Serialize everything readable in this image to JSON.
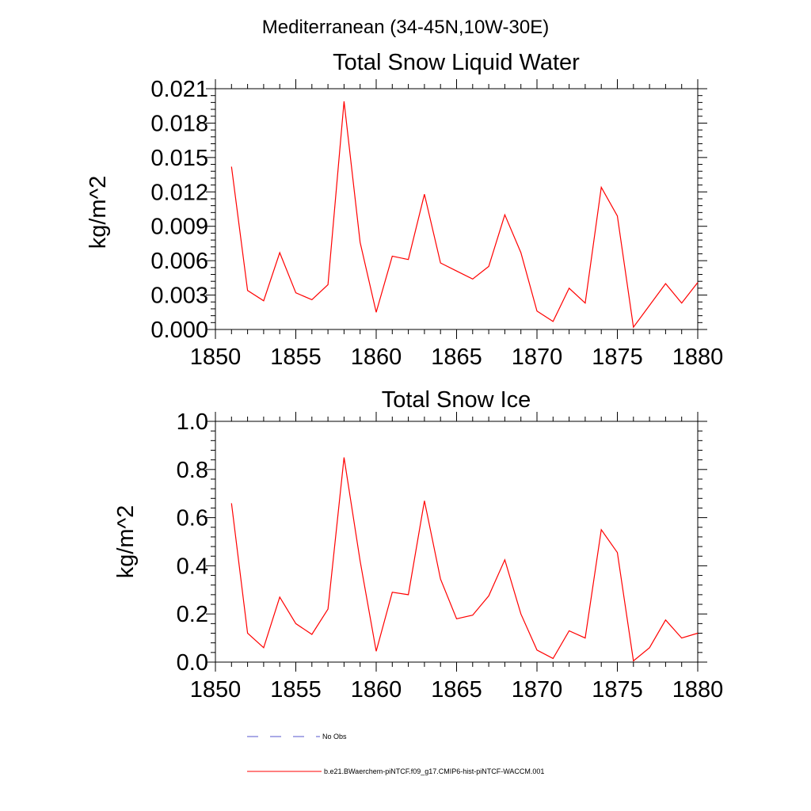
{
  "suptitle": "Mediterranean (34-45N,10W-30E)",
  "colors": {
    "series": "#ff0000",
    "obs": "#5555cc",
    "axis": "#000000"
  },
  "legend": {
    "placement": "bottom",
    "entries": [
      {
        "label": "No Obs",
        "style": "dashed",
        "color": "#5555cc"
      },
      {
        "label": "b.e21.BWaerchem-piNTCF.f09_g17.CMIP6-hist-piNTCF-WACCM.001",
        "style": "solid",
        "color": "#ff0000"
      }
    ]
  },
  "chart_data": [
    {
      "type": "line",
      "title": "Total Snow Liquid Water",
      "xlabel": "",
      "ylabel": "kg/m^2",
      "xlim": [
        1850,
        1880
      ],
      "ylim": [
        0,
        0.021
      ],
      "xticks": [
        "1850",
        "1855",
        "1860",
        "1865",
        "1870",
        "1875",
        "1880"
      ],
      "yticks": [
        "0.000",
        "0.003",
        "0.006",
        "0.009",
        "0.012",
        "0.015",
        "0.018",
        "0.021"
      ],
      "x": [
        1851,
        1852,
        1853,
        1854,
        1855,
        1856,
        1857,
        1858,
        1859,
        1860,
        1861,
        1862,
        1863,
        1864,
        1865,
        1866,
        1867,
        1868,
        1869,
        1870,
        1871,
        1872,
        1873,
        1874,
        1875,
        1876,
        1877,
        1878,
        1879,
        1880
      ],
      "series": [
        {
          "values": [
            0.0142,
            0.0034,
            0.0025,
            0.0067,
            0.0032,
            0.0026,
            0.0039,
            0.0199,
            0.0076,
            0.0015,
            0.0064,
            0.0061,
            0.0118,
            0.0058,
            0.0051,
            0.0044,
            0.0055,
            0.01,
            0.0067,
            0.0016,
            0.0007,
            0.0036,
            0.0023,
            0.0124,
            0.0099,
            0.0002,
            0.0021,
            0.004,
            0.0023,
            0.0041
          ]
        }
      ]
    },
    {
      "type": "line",
      "title": "Total Snow Ice",
      "xlabel": "",
      "ylabel": "kg/m^2",
      "xlim": [
        1850,
        1880
      ],
      "ylim": [
        0,
        1.0
      ],
      "xticks": [
        "1850",
        "1855",
        "1860",
        "1865",
        "1870",
        "1875",
        "1880"
      ],
      "yticks": [
        "0.0",
        "0.2",
        "0.4",
        "0.6",
        "0.8",
        "1.0"
      ],
      "x": [
        1851,
        1852,
        1853,
        1854,
        1855,
        1856,
        1857,
        1858,
        1859,
        1860,
        1861,
        1862,
        1863,
        1864,
        1865,
        1866,
        1867,
        1868,
        1869,
        1870,
        1871,
        1872,
        1873,
        1874,
        1875,
        1876,
        1877,
        1878,
        1879,
        1880
      ],
      "series": [
        {
          "values": [
            0.66,
            0.12,
            0.06,
            0.27,
            0.16,
            0.115,
            0.22,
            0.85,
            0.42,
            0.045,
            0.29,
            0.28,
            0.67,
            0.345,
            0.18,
            0.195,
            0.275,
            0.425,
            0.2,
            0.05,
            0.015,
            0.13,
            0.1,
            0.55,
            0.455,
            0.005,
            0.06,
            0.175,
            0.1,
            0.12
          ]
        }
      ]
    }
  ]
}
